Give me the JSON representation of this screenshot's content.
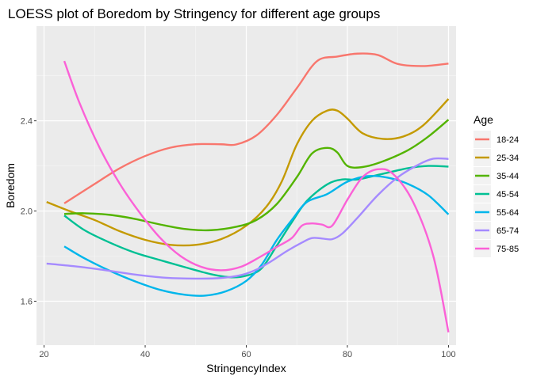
{
  "chart_data": {
    "type": "line",
    "title": "LOESS plot of Boredom by Stringency for different age groups",
    "xlabel": "StringencyIndex",
    "ylabel": "Boredom",
    "xlim": [
      18.5,
      101.5
    ],
    "ylim": [
      1.405,
      2.82
    ],
    "x_ticks": [
      20,
      40,
      60,
      80,
      100
    ],
    "y_ticks": [
      1.6,
      2.0,
      2.4
    ],
    "x_tick_labels": [
      "20",
      "40",
      "60",
      "80",
      "100"
    ],
    "y_tick_labels": [
      "1.6",
      "2.0",
      "2.4"
    ],
    "grid": true,
    "legend": {
      "title": "Age",
      "placement": "right"
    },
    "series": [
      {
        "name": "18-24",
        "color": "#F8766D",
        "points": [
          [
            24,
            2.034
          ],
          [
            30,
            2.12
          ],
          [
            35,
            2.19
          ],
          [
            40,
            2.244
          ],
          [
            45,
            2.281
          ],
          [
            50,
            2.296
          ],
          [
            55,
            2.296
          ],
          [
            58,
            2.295
          ],
          [
            62,
            2.335
          ],
          [
            66,
            2.425
          ],
          [
            70,
            2.545
          ],
          [
            74,
            2.665
          ],
          [
            78,
            2.685
          ],
          [
            82,
            2.698
          ],
          [
            86,
            2.692
          ],
          [
            90,
            2.652
          ],
          [
            95,
            2.643
          ],
          [
            100,
            2.654
          ]
        ]
      },
      {
        "name": "25-34",
        "color": "#C49A00",
        "points": [
          [
            20.5,
            2.04
          ],
          [
            25,
            2.0
          ],
          [
            30,
            1.96
          ],
          [
            35,
            1.91
          ],
          [
            40,
            1.872
          ],
          [
            45,
            1.85
          ],
          [
            50,
            1.85
          ],
          [
            55,
            1.875
          ],
          [
            60,
            1.935
          ],
          [
            64,
            2.02
          ],
          [
            67,
            2.13
          ],
          [
            70,
            2.295
          ],
          [
            73,
            2.4
          ],
          [
            76,
            2.445
          ],
          [
            78,
            2.445
          ],
          [
            80,
            2.41
          ],
          [
            83,
            2.345
          ],
          [
            87,
            2.32
          ],
          [
            91,
            2.33
          ],
          [
            95,
            2.38
          ],
          [
            100,
            2.497
          ]
        ]
      },
      {
        "name": "35-44",
        "color": "#53B400",
        "points": [
          [
            24,
            1.987
          ],
          [
            28,
            1.99
          ],
          [
            33,
            1.983
          ],
          [
            38,
            1.965
          ],
          [
            43,
            1.94
          ],
          [
            48,
            1.92
          ],
          [
            53,
            1.915
          ],
          [
            58,
            1.93
          ],
          [
            62,
            1.96
          ],
          [
            66,
            2.03
          ],
          [
            70,
            2.15
          ],
          [
            73,
            2.255
          ],
          [
            76,
            2.28
          ],
          [
            78,
            2.26
          ],
          [
            80,
            2.2
          ],
          [
            83,
            2.195
          ],
          [
            87,
            2.22
          ],
          [
            92,
            2.27
          ],
          [
            96,
            2.33
          ],
          [
            100,
            2.405
          ]
        ]
      },
      {
        "name": "45-54",
        "color": "#00C094",
        "points": [
          [
            24,
            1.98
          ],
          [
            28,
            1.915
          ],
          [
            33,
            1.86
          ],
          [
            38,
            1.815
          ],
          [
            43,
            1.782
          ],
          [
            48,
            1.75
          ],
          [
            53,
            1.72
          ],
          [
            57,
            1.706
          ],
          [
            60,
            1.713
          ],
          [
            63,
            1.745
          ],
          [
            66,
            1.845
          ],
          [
            69,
            1.95
          ],
          [
            72,
            2.045
          ],
          [
            76,
            2.118
          ],
          [
            79,
            2.14
          ],
          [
            82,
            2.14
          ],
          [
            87,
            2.165
          ],
          [
            92,
            2.19
          ],
          [
            96,
            2.2
          ],
          [
            100,
            2.197
          ]
        ]
      },
      {
        "name": "55-64",
        "color": "#00B6EB",
        "points": [
          [
            24,
            1.843
          ],
          [
            28,
            1.79
          ],
          [
            33,
            1.735
          ],
          [
            38,
            1.688
          ],
          [
            43,
            1.65
          ],
          [
            48,
            1.628
          ],
          [
            52,
            1.625
          ],
          [
            56,
            1.644
          ],
          [
            60,
            1.69
          ],
          [
            63,
            1.76
          ],
          [
            66,
            1.87
          ],
          [
            69,
            1.96
          ],
          [
            72,
            2.04
          ],
          [
            76,
            2.075
          ],
          [
            80,
            2.13
          ],
          [
            84,
            2.155
          ],
          [
            88,
            2.148
          ],
          [
            92,
            2.12
          ],
          [
            96,
            2.07
          ],
          [
            100,
            1.985
          ]
        ]
      },
      {
        "name": "65-74",
        "color": "#A58AFF",
        "points": [
          [
            20.5,
            1.767
          ],
          [
            26,
            1.755
          ],
          [
            32,
            1.738
          ],
          [
            38,
            1.718
          ],
          [
            44,
            1.704
          ],
          [
            50,
            1.7
          ],
          [
            55,
            1.703
          ],
          [
            59,
            1.716
          ],
          [
            62,
            1.74
          ],
          [
            65,
            1.778
          ],
          [
            68,
            1.822
          ],
          [
            71,
            1.86
          ],
          [
            73,
            1.88
          ],
          [
            75,
            1.878
          ],
          [
            77,
            1.875
          ],
          [
            79,
            1.9
          ],
          [
            82,
            1.97
          ],
          [
            86,
            2.07
          ],
          [
            90,
            2.15
          ],
          [
            94,
            2.205
          ],
          [
            97,
            2.232
          ],
          [
            100,
            2.231
          ]
        ]
      },
      {
        "name": "75-85",
        "color": "#FB61D7",
        "points": [
          [
            24,
            2.665
          ],
          [
            27,
            2.48
          ],
          [
            31,
            2.28
          ],
          [
            35,
            2.12
          ],
          [
            39,
            1.99
          ],
          [
            43,
            1.88
          ],
          [
            47,
            1.8
          ],
          [
            51,
            1.753
          ],
          [
            55,
            1.737
          ],
          [
            59,
            1.753
          ],
          [
            63,
            1.8
          ],
          [
            66,
            1.84
          ],
          [
            69,
            1.88
          ],
          [
            71,
            1.935
          ],
          [
            73,
            1.945
          ],
          [
            75,
            1.94
          ],
          [
            77,
            1.935
          ],
          [
            80,
            2.05
          ],
          [
            83,
            2.15
          ],
          [
            86,
            2.185
          ],
          [
            89,
            2.165
          ],
          [
            93,
            2.04
          ],
          [
            97,
            1.8
          ],
          [
            100,
            1.462
          ]
        ]
      }
    ]
  }
}
